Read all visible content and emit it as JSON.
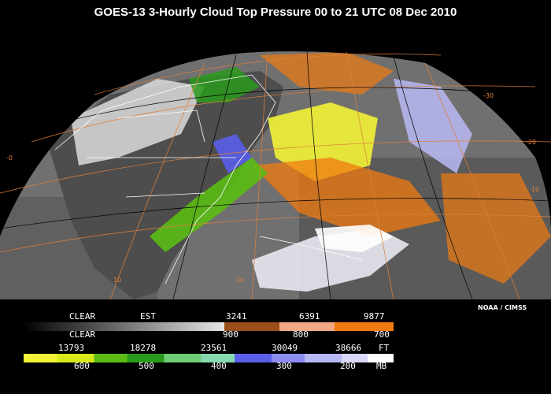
{
  "title": "GOES-13 3-Hourly Cloud Top Pressure  00 to 21 UTC  08 Dec 2010",
  "credit": "NOAA / CIMSS",
  "legend": {
    "row1_top": [
      "CLEAR",
      "EST",
      "3241",
      "6391",
      "9877"
    ],
    "row1_bottom": [
      "CLEAR",
      "900",
      "800",
      "700"
    ],
    "row2_top": [
      "13793",
      "18278",
      "23561",
      "30049",
      "38666",
      "FT"
    ],
    "row2_bottom": [
      "600",
      "500",
      "400",
      "300",
      "200",
      "MB"
    ]
  },
  "colors": {
    "clear_gradient": [
      "#000000",
      "#1a1a1a",
      "#333333",
      "#4d4d4d",
      "#666666",
      "#808080",
      "#999999",
      "#b3b3b3",
      "#cccccc",
      "#e6e6e6"
    ],
    "low_bands": [
      "#9b4f1a",
      "#f2a882",
      "#f07a10"
    ],
    "mid_bands": [
      "#f2f236",
      "#d8e818",
      "#5bbd14",
      "#2a9a1c",
      "#6fcf78",
      "#86d9ae",
      "#5a5ee8",
      "#8c8cf2",
      "#b8b8f5",
      "#d8d8fa",
      "#ffffff"
    ],
    "ocean": "#7a7a7a",
    "land": "#5e5e5e"
  },
  "map": {
    "grid_labels": [
      "-30",
      "-20",
      "-10",
      "-0",
      "10",
      "20"
    ]
  }
}
